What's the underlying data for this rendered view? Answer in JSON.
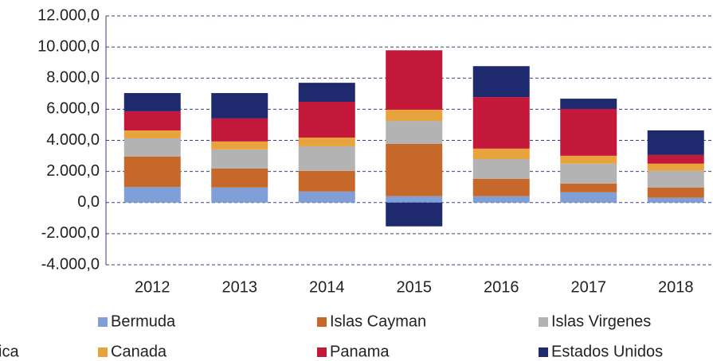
{
  "chart_data": {
    "type": "stacked-bar",
    "categories": [
      "2012",
      "2013",
      "2014",
      "2015",
      "2016",
      "2017",
      "2018"
    ],
    "series": [
      {
        "name": "Bermuda",
        "color": "#7f9fd6",
        "values": [
          1000,
          970,
          710,
          410,
          410,
          660,
          310
        ]
      },
      {
        "name": "Islas Cayman",
        "color": "#c5682a",
        "values": [
          1960,
          1220,
          1330,
          3360,
          1120,
          560,
          660
        ]
      },
      {
        "name": "Islas Virgenes",
        "color": "#b3b3b3",
        "values": [
          1170,
          1230,
          1580,
          1480,
          1270,
          1280,
          1070
        ]
      },
      {
        "name": "Canada",
        "color": "#e8a33c",
        "values": [
          510,
          510,
          560,
          720,
          670,
          510,
          460
        ]
      },
      {
        "name": "Panama",
        "color": "#c4183a",
        "values": [
          1230,
          1480,
          2300,
          3820,
          3310,
          3010,
          560
        ]
      },
      {
        "name": "Estados Unidos",
        "color": "#1f2a6e",
        "values": [
          1170,
          1630,
          1220,
          -1530,
          1990,
          660,
          1580
        ]
      }
    ],
    "ylim": [
      -4000,
      12000
    ],
    "yticks": [
      {
        "value": -4000,
        "label": "-4.000,0"
      },
      {
        "value": -2000,
        "label": "-2.000,0"
      },
      {
        "value": 0,
        "label": "0,0"
      },
      {
        "value": 2000,
        "label": "2.000,0"
      },
      {
        "value": 4000,
        "label": "4.000,0"
      },
      {
        "value": 6000,
        "label": "6.000,0"
      },
      {
        "value": 8000,
        "label": "8.000,0"
      },
      {
        "value": 10000,
        "label": "10.000,0"
      },
      {
        "value": 12000,
        "label": "12.000,0"
      }
    ],
    "grid": true,
    "footnote": "ica"
  }
}
